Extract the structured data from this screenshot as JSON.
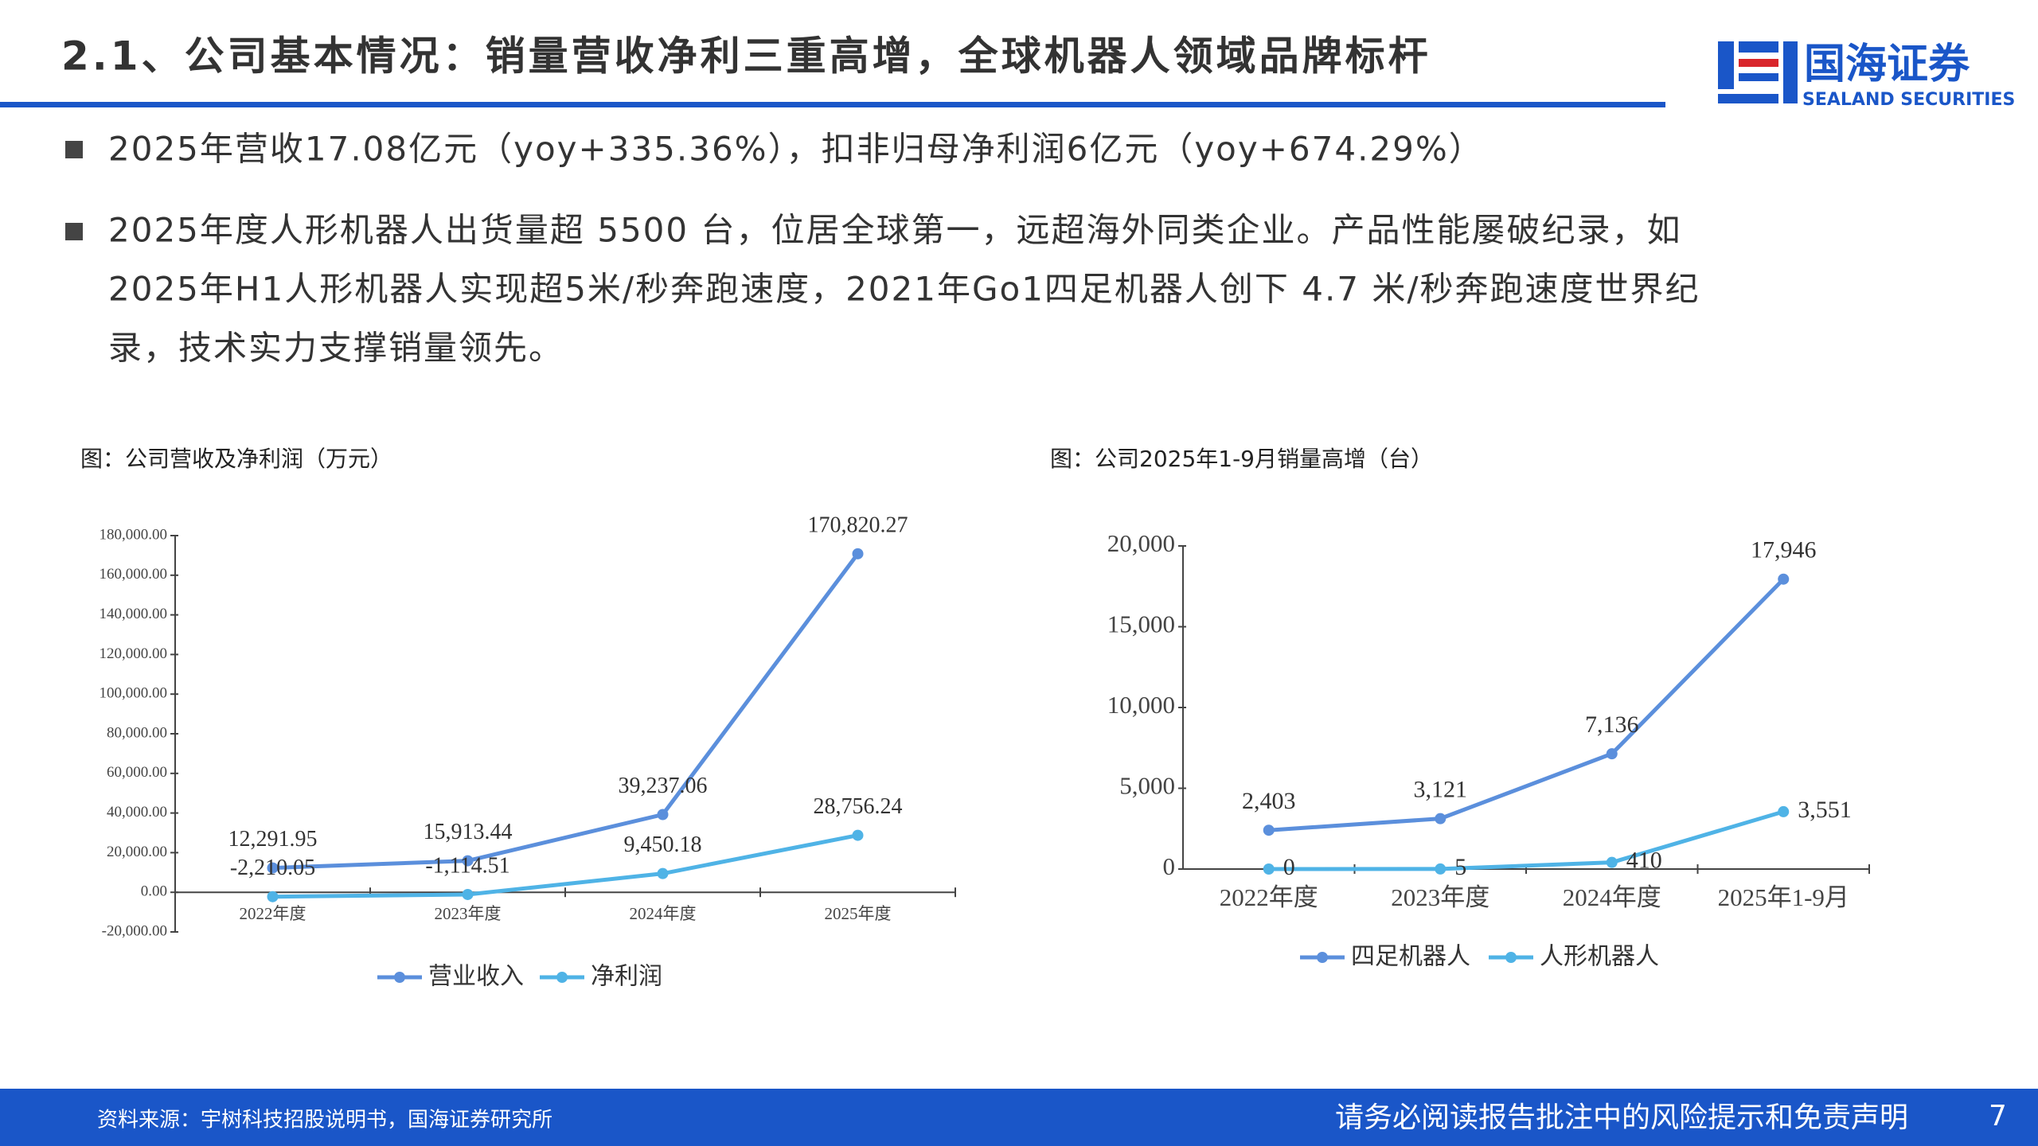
{
  "header": {
    "title": "2.1、公司基本情况：销量营收净利三重高增，全球机器人领域品牌标杆",
    "logo_cn": "国海证券",
    "logo_en": "SEALAND SECURITIES"
  },
  "bullets": [
    "2025年营收17.08亿元（yoy+335.36%），扣非归母净利润6亿元（yoy+674.29%）",
    "2025年度人形机器人出货量超 5500 台，位居全球第一，远超海外同类企业。产品性能屡破纪录，如",
    "2025年H1人形机器人实现超5米/秒奔跑速度，2021年Go1四足机器人创下 4.7 米/秒奔跑速度世界纪",
    "录，技术实力支撑销量领先。"
  ],
  "chart_data": [
    {
      "type": "line",
      "title": "图：公司营收及净利润（万元）",
      "categories": [
        "2022年度",
        "2023年度",
        "2024年度",
        "2025年度"
      ],
      "series": [
        {
          "name": "营业收入",
          "color": "#5b8fdc",
          "values": [
            12291.95,
            15913.44,
            39237.06,
            170820.27
          ],
          "value_labels": [
            "12,291.95",
            "15,913.44",
            "39,237.06",
            "170,820.27"
          ]
        },
        {
          "name": "净利润",
          "color": "#4fb3e6",
          "values": [
            -2210.05,
            -1114.51,
            9450.18,
            28756.24
          ],
          "value_labels": [
            "-2,210.05",
            "-1,114.51",
            "9,450.18",
            "28,756.24"
          ]
        }
      ],
      "ylim": [
        -20000,
        180000
      ],
      "yticks": [
        {
          "value": -20000,
          "label": "-20,000.00"
        },
        {
          "value": 0,
          "label": "0.00"
        },
        {
          "value": 20000,
          "label": "20,000.00"
        },
        {
          "value": 40000,
          "label": "40,000.00"
        },
        {
          "value": 60000,
          "label": "60,000.00"
        },
        {
          "value": 80000,
          "label": "80,000.00"
        },
        {
          "value": 100000,
          "label": "100,000.00"
        },
        {
          "value": 120000,
          "label": "120,000.00"
        },
        {
          "value": 140000,
          "label": "140,000.00"
        },
        {
          "value": 160000,
          "label": "160,000.00"
        },
        {
          "value": 180000,
          "label": "180,000.00"
        }
      ]
    },
    {
      "type": "line",
      "title": "图：公司2025年1-9月销量高增（台）",
      "categories": [
        "2022年度",
        "2023年度",
        "2024年度",
        "2025年1-9月"
      ],
      "series": [
        {
          "name": "四足机器人",
          "color": "#5b8fdc",
          "values": [
            2403,
            3121,
            7136,
            17946
          ],
          "value_labels": [
            "2,403",
            "3,121",
            "7,136",
            "17,946"
          ]
        },
        {
          "name": "人形机器人",
          "color": "#4fb3e6",
          "values": [
            0,
            5,
            410,
            3551
          ],
          "value_labels": [
            "0",
            "5",
            "410",
            "3,551"
          ]
        }
      ],
      "ylim": [
        0,
        20000
      ],
      "yticks": [
        0,
        {
          "value": 5000,
          "label": "5,000"
        },
        {
          "value": 10000,
          "label": "10,000"
        },
        {
          "value": 15000,
          "label": "15,000"
        },
        {
          "value": 20000,
          "label": "20,000"
        }
      ]
    }
  ],
  "footer": {
    "source": "资料来源：宇树科技招股说明书，国海证券研究所",
    "disclaimer": "请务必阅读报告批注中的风险提示和免责声明",
    "page": "7"
  }
}
